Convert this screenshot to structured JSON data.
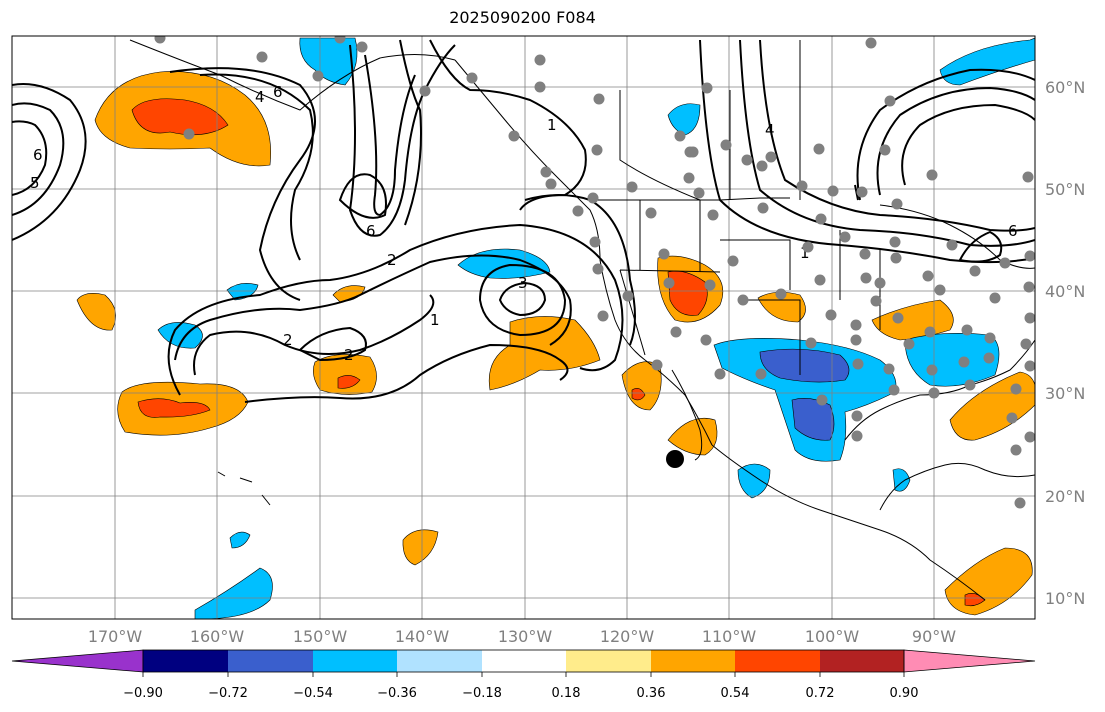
{
  "title": "2025090200 F084",
  "map": {
    "lon_labels": [
      "170°W",
      "160°W",
      "150°W",
      "140°W",
      "130°W",
      "120°W",
      "110°W",
      "100°W",
      "90°W"
    ],
    "lat_labels": [
      "60°N",
      "50°N",
      "40°N",
      "30°N",
      "20°N",
      "10°N"
    ],
    "contour_labels": [
      "6",
      "5",
      "4",
      "6",
      "6",
      "2",
      "1",
      "3",
      "2",
      "2",
      "1",
      "4",
      "1",
      "6"
    ],
    "gridline_color": "#808080",
    "coast_color": "#000000",
    "station_color": "#808080"
  },
  "colorbar": {
    "ticks": [
      "−0.90",
      "−0.72",
      "−0.54",
      "−0.36",
      "−0.18",
      "0.18",
      "0.36",
      "0.54",
      "0.72",
      "0.90"
    ],
    "colors": [
      "#9932cc",
      "#000080",
      "#3a5fcd",
      "#00bfff",
      "#b0e2ff",
      "#ffffff",
      "#ffec8b",
      "#ffa500",
      "#ff4500",
      "#b22222",
      "#ff8cb4"
    ]
  }
}
